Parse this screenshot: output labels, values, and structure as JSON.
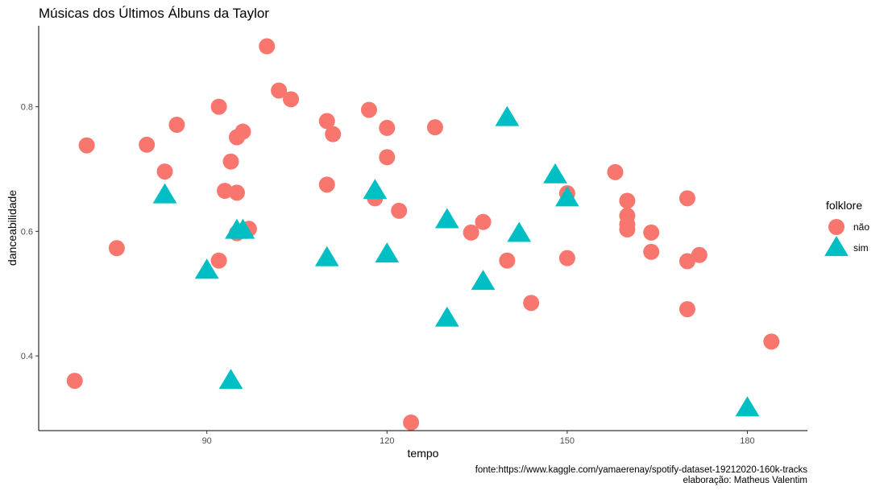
{
  "chart_data": {
    "type": "scatter",
    "title": "Músicas dos Últimos Álbuns da Taylor",
    "xlabel": "tempo",
    "ylabel": "danceabilidade",
    "xlim": [
      62,
      190
    ],
    "ylim": [
      0.28,
      0.93
    ],
    "xticks": [
      90,
      120,
      150,
      180
    ],
    "yticks": [
      0.4,
      0.6,
      0.8
    ],
    "xtick_labels": [
      "90",
      "120",
      "150",
      "180"
    ],
    "ytick_labels": [
      "0.4",
      "0.6",
      "0.8"
    ],
    "grid": false,
    "legend_position": "right",
    "legend_title": "folklore",
    "series": [
      {
        "name": "não",
        "color": "#F8766D",
        "marker": "circle",
        "points": [
          [
            68,
            0.36
          ],
          [
            70,
            0.738
          ],
          [
            75,
            0.573
          ],
          [
            80,
            0.739
          ],
          [
            83,
            0.696
          ],
          [
            85,
            0.771
          ],
          [
            92,
            0.553
          ],
          [
            92,
            0.8
          ],
          [
            93,
            0.665
          ],
          [
            94,
            0.712
          ],
          [
            95,
            0.751
          ],
          [
            95,
            0.662
          ],
          [
            95,
            0.597
          ],
          [
            96,
            0.76
          ],
          [
            97,
            0.604
          ],
          [
            100,
            0.897
          ],
          [
            102,
            0.826
          ],
          [
            104,
            0.812
          ],
          [
            110,
            0.777
          ],
          [
            110,
            0.675
          ],
          [
            111,
            0.756
          ],
          [
            117,
            0.795
          ],
          [
            118,
            0.653
          ],
          [
            120,
            0.766
          ],
          [
            120,
            0.719
          ],
          [
            122,
            0.633
          ],
          [
            124,
            0.293
          ],
          [
            128,
            0.767
          ],
          [
            134,
            0.598
          ],
          [
            136,
            0.615
          ],
          [
            140,
            0.553
          ],
          [
            144,
            0.485
          ],
          [
            150,
            0.661
          ],
          [
            150,
            0.557
          ],
          [
            158,
            0.695
          ],
          [
            160,
            0.649
          ],
          [
            160,
            0.625
          ],
          [
            160,
            0.611
          ],
          [
            160,
            0.603
          ],
          [
            164,
            0.598
          ],
          [
            164,
            0.567
          ],
          [
            170,
            0.653
          ],
          [
            170,
            0.552
          ],
          [
            170,
            0.475
          ],
          [
            172,
            0.562
          ],
          [
            184,
            0.423
          ]
        ]
      },
      {
        "name": "sim",
        "color": "#00BFC4",
        "marker": "triangle",
        "points": [
          [
            83,
            0.658
          ],
          [
            90,
            0.537
          ],
          [
            94,
            0.36
          ],
          [
            95,
            0.601
          ],
          [
            96,
            0.601
          ],
          [
            110,
            0.557
          ],
          [
            118,
            0.665
          ],
          [
            120,
            0.563
          ],
          [
            130,
            0.618
          ],
          [
            130,
            0.46
          ],
          [
            136,
            0.519
          ],
          [
            140,
            0.782
          ],
          [
            142,
            0.596
          ],
          [
            148,
            0.69
          ],
          [
            150,
            0.653
          ],
          [
            180,
            0.316
          ]
        ]
      }
    ],
    "caption": [
      "fonte:https://www.kaggle.com/yamaerenay/spotify-dataset-19212020-160k-tracks",
      "elaboração: Matheus Valentim"
    ]
  }
}
